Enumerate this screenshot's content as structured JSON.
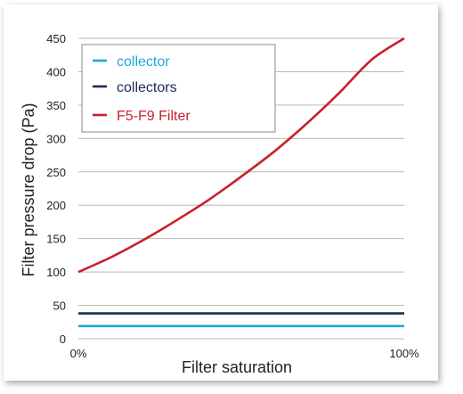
{
  "chart_data": {
    "type": "line",
    "xlabel": "Filter saturation",
    "ylabel": "Filter pressure drop (Pa)",
    "x": [
      0,
      10,
      20,
      30,
      40,
      50,
      60,
      70,
      80,
      90,
      100
    ],
    "x_tick_labels": [
      "0%",
      "100%"
    ],
    "ylim": [
      0,
      450
    ],
    "y_ticks": [
      0,
      50,
      100,
      150,
      200,
      250,
      300,
      350,
      400,
      450
    ],
    "grid": true,
    "legend_position": "top-left",
    "series": [
      {
        "name": "collector",
        "color": "#1ea7dd",
        "values": [
          19,
          19,
          19,
          19,
          19,
          19,
          19,
          19,
          19,
          19,
          19
        ]
      },
      {
        "name": "collectors",
        "color": "#1b2a55",
        "values": [
          38,
          38,
          38,
          38,
          38,
          38,
          38,
          38,
          38,
          38,
          38
        ]
      },
      {
        "name": "F5-F9 Filter",
        "color": "#c8202b",
        "values": [
          100,
          122,
          148,
          177,
          208,
          243,
          280,
          322,
          368,
          418,
          450
        ]
      }
    ]
  }
}
